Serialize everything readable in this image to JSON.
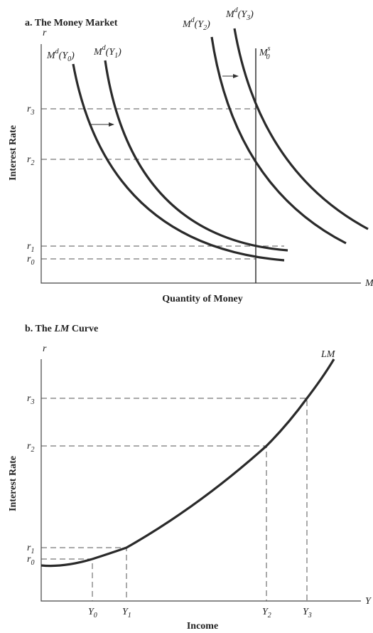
{
  "panel_a": {
    "title": "a. The Money Market",
    "y_symbol": "r",
    "x_symbol": "M",
    "y_label": "Interest Rate",
    "x_label": "Quantity of Money",
    "rates": [
      {
        "letter": "r",
        "sub": "3"
      },
      {
        "letter": "r",
        "sub": "2"
      },
      {
        "letter": "r",
        "sub": "1"
      },
      {
        "letter": "r",
        "sub": "0"
      }
    ],
    "curves": [
      {
        "letter": "M",
        "sup": "d",
        "open": "(Y",
        "sub": "0",
        "close": ")"
      },
      {
        "letter": "M",
        "sup": "d",
        "open": "(Y",
        "sub": "1",
        "close": ")"
      },
      {
        "letter": "M",
        "sup": "d",
        "open": "(Y",
        "sub": "2",
        "close": ")"
      },
      {
        "letter": "M",
        "sup": "d",
        "open": "(Y",
        "sub": "3",
        "close": ")"
      }
    ],
    "supply": {
      "letter": "M",
      "sup": "s",
      "sub": "0"
    }
  },
  "panel_b": {
    "title_prefix": "b. The ",
    "title_italic": "LM",
    "title_suffix": " Curve",
    "y_symbol": "r",
    "x_symbol": "Y",
    "y_label": "Interest Rate",
    "x_label": "Income",
    "curve_label": "LM",
    "rates": [
      {
        "letter": "r",
        "sub": "3"
      },
      {
        "letter": "r",
        "sub": "2"
      },
      {
        "letter": "r",
        "sub": "1"
      },
      {
        "letter": "r",
        "sub": "0"
      }
    ],
    "incomes": [
      {
        "letter": "Y",
        "sub": "0"
      },
      {
        "letter": "Y",
        "sub": "1"
      },
      {
        "letter": "Y",
        "sub": "2"
      },
      {
        "letter": "Y",
        "sub": "3"
      }
    ]
  }
}
